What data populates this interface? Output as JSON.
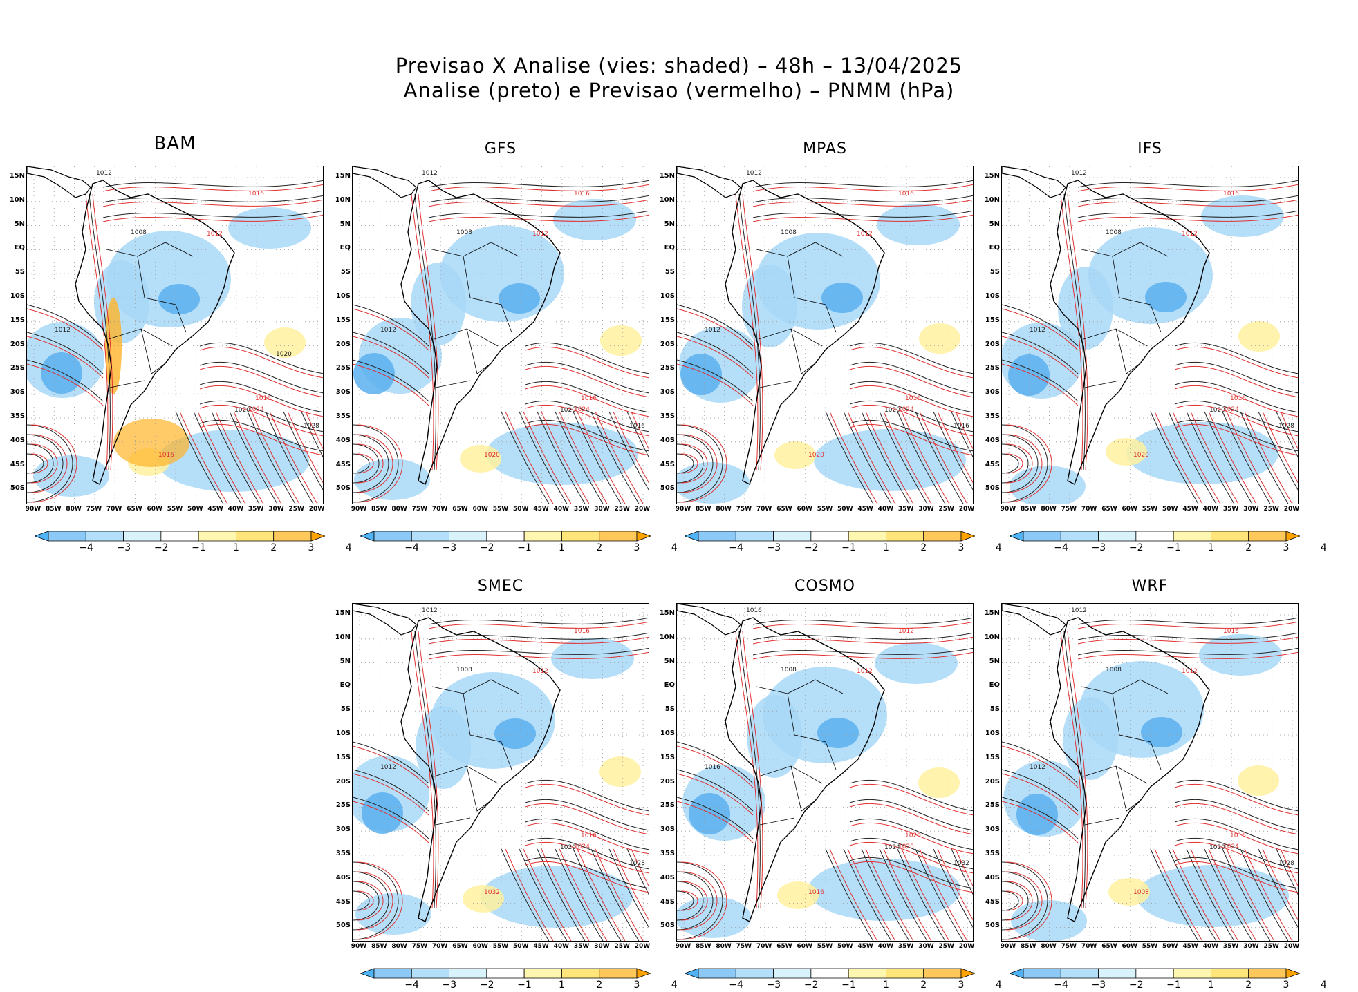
{
  "title": {
    "line1": "Previsao X Analise (vies: shaded) – 48h – 13/04/2025",
    "line2": "Analise (preto) e Previsao (vermelho) – PNMM (hPa)"
  },
  "axes": {
    "lat_labels": [
      "15N",
      "10N",
      "5N",
      "EQ",
      "5S",
      "10S",
      "15S",
      "20S",
      "25S",
      "30S",
      "35S",
      "40S",
      "45S",
      "50S"
    ],
    "lon_labels": [
      "90W",
      "85W",
      "80W",
      "75W",
      "70W",
      "65W",
      "60W",
      "55W",
      "50W",
      "45W",
      "40W",
      "35W",
      "30W",
      "25W",
      "20W"
    ]
  },
  "colorbar": {
    "ticks": [
      "−4",
      "−3",
      "−2",
      "−1",
      "1",
      "2",
      "3",
      "4"
    ],
    "colors": [
      "#4fb3f5",
      "#8dc9f7",
      "#b3dffa",
      "#d9f3fc",
      "#ffffff",
      "#fff7b0",
      "#ffe57a",
      "#ffc85a",
      "#ffa300"
    ]
  },
  "colors": {
    "analysis": "#222222",
    "forecast": "#e03030",
    "neg_bias": "#a8d8f8",
    "neg_bias_strong": "#5ab0ee",
    "pos_bias": "#fff1a0",
    "pos_bias_strong": "#ffb428"
  },
  "panels": [
    {
      "name": "BAM",
      "labels": [
        "1012",
        "1016",
        "1008",
        "1012",
        "1012",
        "1016",
        "1020",
        "1024",
        "1028",
        "1016",
        "1020"
      ]
    },
    {
      "name": "GFS",
      "labels": [
        "1012",
        "1016",
        "1008",
        "1012",
        "1012",
        "1016",
        "1020",
        "1024",
        "1016",
        "1020"
      ]
    },
    {
      "name": "MPAS",
      "labels": [
        "1012",
        "1016",
        "1008",
        "1012",
        "1012",
        "1016",
        "1020",
        "1024",
        "1016",
        "1020"
      ]
    },
    {
      "name": "IFS",
      "labels": [
        "1012",
        "1016",
        "1008",
        "1012",
        "1012",
        "1016",
        "1020",
        "1024",
        "1028",
        "1020"
      ]
    },
    {
      "name": "SMEC",
      "labels": [
        "1012",
        "1016",
        "1008",
        "1012",
        "1012",
        "1016",
        "1020",
        "1024",
        "1028",
        "1032"
      ]
    },
    {
      "name": "COSMO",
      "labels": [
        "1016",
        "1012",
        "1008",
        "1012",
        "1016",
        "1020",
        "1024",
        "1028",
        "1032",
        "1016"
      ]
    },
    {
      "name": "WRF",
      "labels": [
        "1012",
        "1016",
        "1008",
        "1012",
        "1012",
        "1016",
        "1020",
        "1024",
        "1028",
        "1008"
      ]
    }
  ]
}
